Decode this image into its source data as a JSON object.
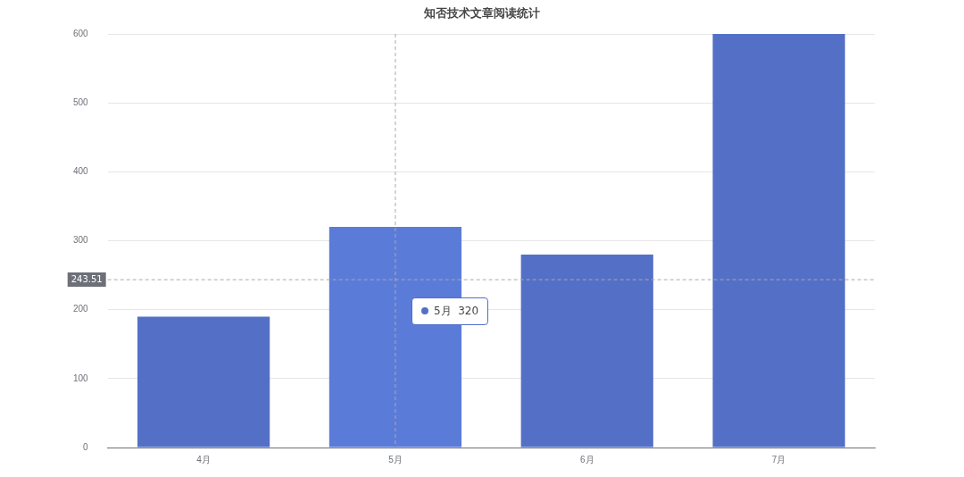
{
  "chart_data": {
    "type": "bar",
    "title": "知否技术文章阅读统计",
    "categories": [
      "4月",
      "5月",
      "6月",
      "7月"
    ],
    "series": [
      {
        "color": "#5470c6",
        "colors": [
          "#5470c6",
          "#5b7bd9",
          "#5470c6",
          "#5470c6"
        ],
        "values": [
          190,
          320,
          280,
          600
        ]
      }
    ],
    "ylim": [
      0,
      600
    ],
    "yticks": [
      0,
      100,
      200,
      300,
      400,
      500,
      600
    ],
    "grid": "y",
    "legend": false,
    "ref_lines": [
      {
        "axis": "y",
        "value": 243.51,
        "label": "243.51",
        "color": "#aaaaaa",
        "line_style": "dashed"
      },
      {
        "axis": "x",
        "value": "5月",
        "color": "#aaaaaa",
        "line_style": "dashed"
      }
    ],
    "annotations": [
      "5月  320"
    ]
  }
}
